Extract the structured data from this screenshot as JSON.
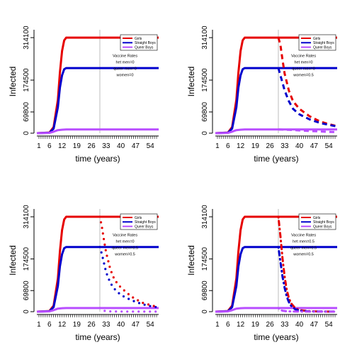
{
  "chart_data": [
    {
      "type": "line",
      "xlabel": "time (years)",
      "ylabel": "Infected",
      "xlim": [
        0,
        58
      ],
      "ylim": [
        0,
        340000
      ],
      "x_ticks": [
        1,
        6,
        12,
        19,
        26,
        33,
        40,
        47,
        54
      ],
      "y_ticks": [
        0,
        69800,
        174500,
        314100
      ],
      "y_tick_labels": [
        "0",
        "69800",
        "174500",
        "314100"
      ],
      "vline_x": 30,
      "legend_position": "top-right",
      "legend": [
        "Girls",
        "Straight Boys",
        "Queer Boys"
      ],
      "annotation": [
        "Vaccine Rates",
        "het men=0",
        "queer men=0",
        "women=0"
      ],
      "series": [
        {
          "name": "Girls",
          "color": "#e60000",
          "points": [
            [
              0,
              0
            ],
            [
              6,
              2000
            ],
            [
              8,
              20000
            ],
            [
              10,
              110000
            ],
            [
              11,
              200000
            ],
            [
              12,
              270000
            ],
            [
              13,
              305000
            ],
            [
              14,
              314100
            ],
            [
              58,
              314100
            ]
          ]
        },
        {
          "name": "Straight Boys",
          "color": "#0000cc",
          "points": [
            [
              0,
              0
            ],
            [
              6,
              1500
            ],
            [
              8,
              15000
            ],
            [
              10,
              85000
            ],
            [
              11,
              150000
            ],
            [
              12,
              190000
            ],
            [
              13,
              210000
            ],
            [
              14,
              214000
            ],
            [
              58,
              214000
            ]
          ]
        },
        {
          "name": "Queer Boys",
          "color": "#b84dff",
          "points": [
            [
              0,
              0
            ],
            [
              6,
              1000
            ],
            [
              8,
              5000
            ],
            [
              10,
              10000
            ],
            [
              12,
              11500
            ],
            [
              14,
              12000
            ],
            [
              58,
              12000
            ]
          ]
        }
      ]
    },
    {
      "type": "line",
      "xlabel": "time (years)",
      "ylabel": "Infected",
      "xlim": [
        0,
        58
      ],
      "ylim": [
        0,
        340000
      ],
      "x_ticks": [
        1,
        6,
        12,
        19,
        26,
        33,
        40,
        47,
        54
      ],
      "y_ticks": [
        0,
        69800,
        174500,
        314100
      ],
      "y_tick_labels": [
        "0",
        "69800",
        "174500",
        "314100"
      ],
      "vline_x": 30,
      "legend_position": "top-right",
      "legend": [
        "Girls",
        "Straight Boys",
        "Queer Boys"
      ],
      "annotation": [
        "Vaccine Rates",
        "het men=0",
        "queer men=0",
        "women=0.5"
      ],
      "series": [
        {
          "name": "Girls",
          "color": "#e60000",
          "points": [
            [
              0,
              0
            ],
            [
              6,
              2000
            ],
            [
              8,
              20000
            ],
            [
              10,
              110000
            ],
            [
              11,
              200000
            ],
            [
              12,
              270000
            ],
            [
              13,
              305000
            ],
            [
              14,
              314100
            ],
            [
              58,
              314100
            ]
          ]
        },
        {
          "name": "Straight Boys",
          "color": "#0000cc",
          "points": [
            [
              0,
              0
            ],
            [
              6,
              1500
            ],
            [
              8,
              15000
            ],
            [
              10,
              85000
            ],
            [
              11,
              150000
            ],
            [
              12,
              190000
            ],
            [
              13,
              210000
            ],
            [
              14,
              214000
            ],
            [
              58,
              214000
            ]
          ]
        },
        {
          "name": "Queer Boys",
          "color": "#b84dff",
          "points": [
            [
              0,
              0
            ],
            [
              6,
              1000
            ],
            [
              8,
              5000
            ],
            [
              10,
              10000
            ],
            [
              12,
              11500
            ],
            [
              14,
              12000
            ],
            [
              58,
              12000
            ]
          ]
        },
        {
          "name": "Girls",
          "color": "#e60000",
          "dashed": true,
          "points": [
            [
              30,
              314100
            ],
            [
              31,
              290000
            ],
            [
              32,
              240000
            ],
            [
              33,
              195000
            ],
            [
              35,
              140000
            ],
            [
              37,
              105000
            ],
            [
              40,
              80000
            ],
            [
              45,
              55000
            ],
            [
              50,
              38000
            ],
            [
              55,
              28000
            ],
            [
              58,
              23000
            ]
          ]
        },
        {
          "name": "Straight Boys",
          "color": "#0000cc",
          "dashed": true,
          "points": [
            [
              30,
              214000
            ],
            [
              31,
              190000
            ],
            [
              32,
              165000
            ],
            [
              33,
              140000
            ],
            [
              35,
              105000
            ],
            [
              37,
              80000
            ],
            [
              40,
              62000
            ],
            [
              45,
              45000
            ],
            [
              50,
              33000
            ],
            [
              55,
              26000
            ],
            [
              58,
              22000
            ]
          ]
        },
        {
          "name": "Queer Boys",
          "color": "#b84dff",
          "dashed": true,
          "points": [
            [
              30,
              12000
            ],
            [
              35,
              11000
            ],
            [
              40,
              9000
            ],
            [
              45,
              7000
            ],
            [
              50,
              5500
            ],
            [
              55,
              4000
            ],
            [
              58,
              3500
            ]
          ]
        }
      ]
    },
    {
      "type": "line",
      "xlabel": "time (years)",
      "ylabel": "Infected",
      "xlim": [
        0,
        58
      ],
      "ylim": [
        0,
        340000
      ],
      "x_ticks": [
        1,
        6,
        12,
        19,
        26,
        33,
        40,
        47,
        54
      ],
      "y_ticks": [
        0,
        69800,
        174500,
        314100
      ],
      "y_tick_labels": [
        "0",
        "69800",
        "174500",
        "314100"
      ],
      "vline_x": 30,
      "legend_position": "top-right",
      "legend": [
        "Girls",
        "Straight Boys",
        "Queer Boys"
      ],
      "annotation": [
        "Vaccine Rates",
        "het men=0",
        "queer men=0.5",
        "women=0.5"
      ],
      "series": [
        {
          "name": "Girls",
          "color": "#e60000",
          "points": [
            [
              0,
              0
            ],
            [
              6,
              2000
            ],
            [
              8,
              20000
            ],
            [
              10,
              110000
            ],
            [
              11,
              200000
            ],
            [
              12,
              270000
            ],
            [
              13,
              305000
            ],
            [
              14,
              314100
            ],
            [
              58,
              314100
            ]
          ]
        },
        {
          "name": "Straight Boys",
          "color": "#0000cc",
          "points": [
            [
              0,
              0
            ],
            [
              6,
              1500
            ],
            [
              8,
              15000
            ],
            [
              10,
              85000
            ],
            [
              11,
              150000
            ],
            [
              12,
              190000
            ],
            [
              13,
              210000
            ],
            [
              14,
              214000
            ],
            [
              58,
              214000
            ]
          ]
        },
        {
          "name": "Queer Boys",
          "color": "#b84dff",
          "points": [
            [
              0,
              0
            ],
            [
              6,
              1000
            ],
            [
              8,
              5000
            ],
            [
              10,
              10000
            ],
            [
              12,
              11500
            ],
            [
              14,
              12000
            ],
            [
              58,
              12000
            ]
          ]
        },
        {
          "name": "Girls",
          "color": "#e60000",
          "dotted": true,
          "points": [
            [
              30,
              314100
            ],
            [
              31,
              280000
            ],
            [
              32,
              235000
            ],
            [
              33,
              195000
            ],
            [
              35,
              140000
            ],
            [
              37,
              105000
            ],
            [
              40,
              80000
            ],
            [
              45,
              50000
            ],
            [
              50,
              30000
            ],
            [
              55,
              20000
            ],
            [
              58,
              15000
            ]
          ]
        },
        {
          "name": "Straight Boys",
          "color": "#0000cc",
          "dotted": true,
          "points": [
            [
              30,
              214000
            ],
            [
              31,
              190000
            ],
            [
              32,
              160000
            ],
            [
              33,
              130000
            ],
            [
              35,
              95000
            ],
            [
              37,
              75000
            ],
            [
              40,
              55000
            ],
            [
              45,
              38000
            ],
            [
              50,
              25000
            ],
            [
              55,
              17000
            ],
            [
              58,
              14000
            ]
          ]
        },
        {
          "name": "Queer Boys",
          "color": "#b84dff",
          "dotted": true,
          "points": [
            [
              30,
              12000
            ],
            [
              31,
              6000
            ],
            [
              32,
              3000
            ],
            [
              33,
              1500
            ],
            [
              36,
              800
            ],
            [
              40,
              500
            ],
            [
              58,
              200
            ]
          ]
        }
      ]
    },
    {
      "type": "line",
      "xlabel": "time (years)",
      "ylabel": "Infected",
      "xlim": [
        0,
        58
      ],
      "ylim": [
        0,
        340000
      ],
      "x_ticks": [
        1,
        6,
        12,
        19,
        26,
        33,
        40,
        47,
        54
      ],
      "y_ticks": [
        0,
        69800,
        174500,
        314100
      ],
      "y_tick_labels": [
        "0",
        "69800",
        "174500",
        "314100"
      ],
      "vline_x": 30,
      "legend_position": "top-right",
      "legend": [
        "Girls",
        "Straight Boys",
        "Queer Boys"
      ],
      "annotation": [
        "Vaccine Rates",
        "het men=0.5",
        "queer men=0.5",
        "women=0.5"
      ],
      "series": [
        {
          "name": "Girls",
          "color": "#e60000",
          "points": [
            [
              0,
              0
            ],
            [
              6,
              2000
            ],
            [
              8,
              20000
            ],
            [
              10,
              110000
            ],
            [
              11,
              200000
            ],
            [
              12,
              270000
            ],
            [
              13,
              305000
            ],
            [
              14,
              314100
            ],
            [
              58,
              314100
            ]
          ]
        },
        {
          "name": "Straight Boys",
          "color": "#0000cc",
          "points": [
            [
              0,
              0
            ],
            [
              6,
              1500
            ],
            [
              8,
              15000
            ],
            [
              10,
              85000
            ],
            [
              11,
              150000
            ],
            [
              12,
              190000
            ],
            [
              13,
              210000
            ],
            [
              14,
              214000
            ],
            [
              58,
              214000
            ]
          ]
        },
        {
          "name": "Queer Boys",
          "color": "#b84dff",
          "points": [
            [
              0,
              0
            ],
            [
              6,
              1000
            ],
            [
              8,
              5000
            ],
            [
              10,
              10000
            ],
            [
              12,
              11500
            ],
            [
              14,
              12000
            ],
            [
              58,
              12000
            ]
          ]
        },
        {
          "name": "Girls",
          "color": "#e60000",
          "dotdash": true,
          "points": [
            [
              30,
              314100
            ],
            [
              31,
              250000
            ],
            [
              32,
              175000
            ],
            [
              33,
              115000
            ],
            [
              34,
              72000
            ],
            [
              35,
              45000
            ],
            [
              36,
              28000
            ],
            [
              38,
              12000
            ],
            [
              40,
              5000
            ],
            [
              45,
              1500
            ],
            [
              50,
              500
            ],
            [
              58,
              200
            ]
          ]
        },
        {
          "name": "Straight Boys",
          "color": "#0000cc",
          "dotdash": true,
          "points": [
            [
              30,
              214000
            ],
            [
              31,
              165000
            ],
            [
              32,
              115000
            ],
            [
              33,
              78000
            ],
            [
              34,
              50000
            ],
            [
              35,
              32000
            ],
            [
              36,
              20000
            ],
            [
              38,
              8000
            ],
            [
              40,
              3000
            ],
            [
              45,
              800
            ],
            [
              58,
              200
            ]
          ]
        },
        {
          "name": "Queer Boys",
          "color": "#b84dff",
          "dotdash": true,
          "points": [
            [
              30,
              12000
            ],
            [
              31,
              6000
            ],
            [
              32,
              3000
            ],
            [
              34,
              1200
            ],
            [
              38,
              400
            ],
            [
              58,
              100
            ]
          ]
        }
      ]
    }
  ]
}
